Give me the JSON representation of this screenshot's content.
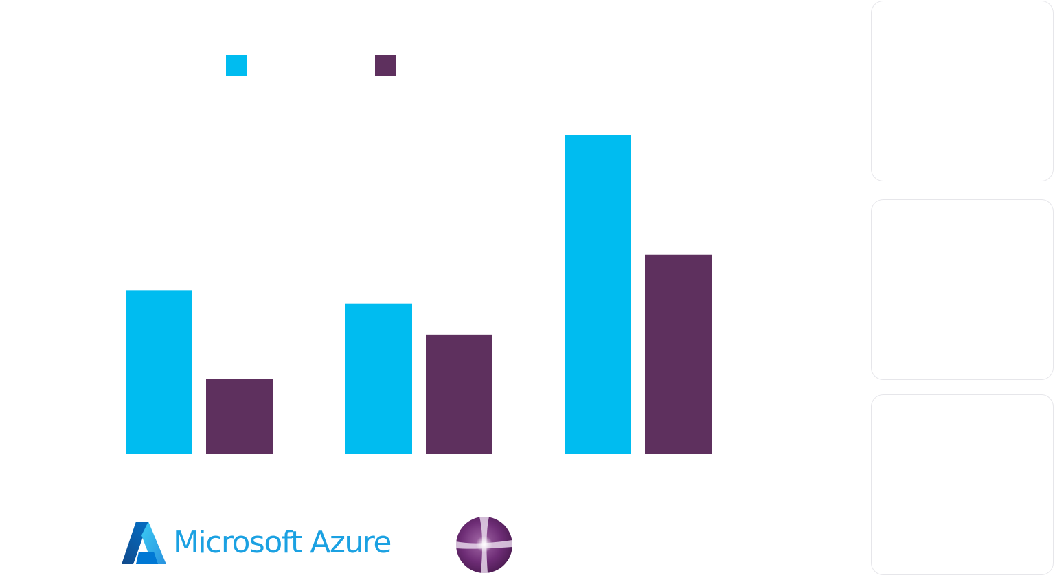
{
  "chart_data": {
    "type": "bar",
    "categories": [
      "",
      "",
      ""
    ],
    "series": [
      {
        "values": [
          37,
          34,
          72
        ],
        "color": "#00BCF0"
      },
      {
        "values": [
          17,
          27,
          45
        ],
        "color": "#5E305E"
      }
    ],
    "ylim": [
      0,
      100
    ],
    "grid": false,
    "legend_position": "top-left",
    "title": "",
    "xlabel": "",
    "ylabel": ""
  },
  "logos": {
    "azure": {
      "text": "Microsoft Azure",
      "color": "#1ba1e2",
      "icon": "azure-logo-icon"
    },
    "orb": {
      "icon": "purple-orb-logo-icon",
      "color": "#5E305E"
    }
  },
  "side_cards": [
    {
      "id": "card-1"
    },
    {
      "id": "card-2"
    },
    {
      "id": "card-3"
    }
  ]
}
